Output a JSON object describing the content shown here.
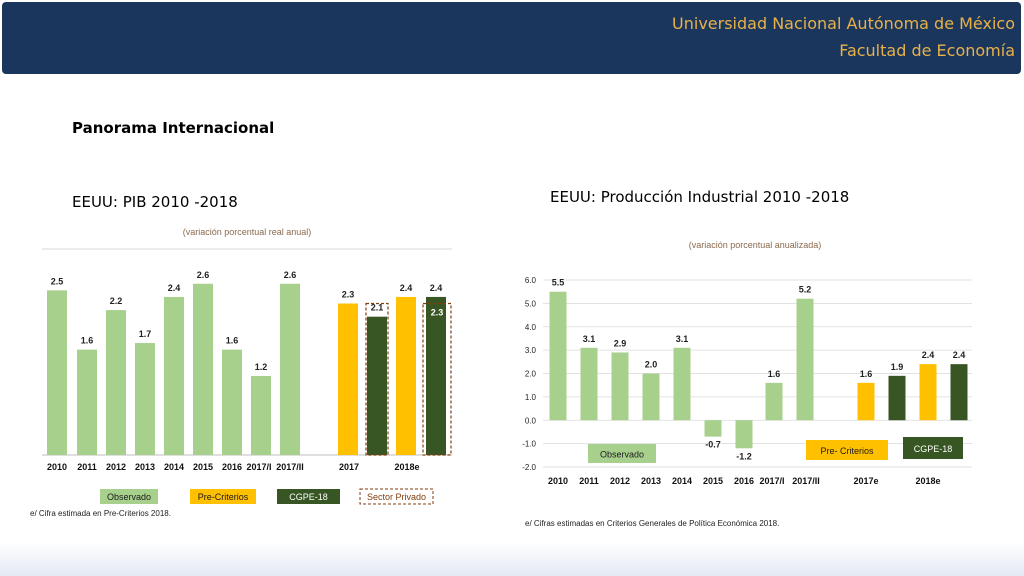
{
  "header": {
    "line1": "Universidad Nacional Autónoma de México",
    "line2": "Facultad de Economía"
  },
  "section_title": "Panorama Internacional",
  "colors": {
    "header_bg": "#1b365d",
    "header_text": "#e8b14a",
    "observado": "#a8d08d",
    "pre_criterios": "#ffc000",
    "cgpe": "#375623",
    "sector_privado_border": "#843c0c"
  },
  "chart_data": [
    {
      "type": "bar",
      "title": "EEUU: PIB 2010 -2018",
      "subtitle": "(variación porcentual real anual)",
      "categories": [
        "2010",
        "2011",
        "2012",
        "2013",
        "2014",
        "2015",
        "2016",
        "2017/I",
        "2017/II",
        "2017",
        "2018e"
      ],
      "series": [
        {
          "name": "Observado",
          "points": [
            {
              "x": "2010",
              "y": 2.5
            },
            {
              "x": "2011",
              "y": 1.6
            },
            {
              "x": "2012",
              "y": 2.2
            },
            {
              "x": "2013",
              "y": 1.7
            },
            {
              "x": "2014",
              "y": 2.4
            },
            {
              "x": "2015",
              "y": 2.6
            },
            {
              "x": "2016",
              "y": 1.6
            },
            {
              "x": "2017/I",
              "y": 1.2
            },
            {
              "x": "2017/II",
              "y": 2.6
            }
          ]
        },
        {
          "name": "Pre-Criterios",
          "points": [
            {
              "x": "2017",
              "y": 2.3
            },
            {
              "x": "2018e",
              "y": 2.4
            }
          ]
        },
        {
          "name": "CGPE-18",
          "points": [
            {
              "x": "2017",
              "y": 2.1
            },
            {
              "x": "2018e",
              "y": 2.4
            }
          ]
        },
        {
          "name": "Sector Privado",
          "points": [
            {
              "x": "2018e",
              "y": 2.3
            }
          ]
        }
      ],
      "ylim": [
        0,
        2.9
      ],
      "legend": [
        "Observado",
        "Pre-Criterios",
        "CGPE-18",
        "Sector Privado"
      ],
      "legend_position": "bottom",
      "footnote": "e/ Cifra estimada en Pre-Criterios 2018."
    },
    {
      "type": "bar",
      "title": "EEUU: Producción Industrial 2010 -2018",
      "subtitle": "(variación porcentual anualizada)",
      "categories": [
        "2010",
        "2011",
        "2012",
        "2013",
        "2014",
        "2015",
        "2016",
        "2017/I",
        "2017/II",
        "2017e",
        "2018e"
      ],
      "series": [
        {
          "name": "Observado",
          "points": [
            {
              "x": "2010",
              "y": 5.5
            },
            {
              "x": "2011",
              "y": 3.1
            },
            {
              "x": "2012",
              "y": 2.9
            },
            {
              "x": "2013",
              "y": 2.0
            },
            {
              "x": "2014",
              "y": 3.1
            },
            {
              "x": "2015",
              "y": -0.7
            },
            {
              "x": "2016",
              "y": -1.2
            },
            {
              "x": "2017/I",
              "y": 1.6
            },
            {
              "x": "2017/II",
              "y": 5.2
            }
          ]
        },
        {
          "name": "Pre- Criterios",
          "points": [
            {
              "x": "2017e",
              "y": 1.6
            },
            {
              "x": "2018e",
              "y": 2.4
            }
          ]
        },
        {
          "name": "CGPE-18",
          "points": [
            {
              "x": "2017e",
              "y": 1.9
            },
            {
              "x": "2018e",
              "y": 2.4
            }
          ]
        }
      ],
      "yticks": [
        "6.0",
        "5.0",
        "4.0",
        "3.0",
        "2.0",
        "1.0",
        "0.0",
        "-1.0",
        "-2.0"
      ],
      "ylim": [
        -2.0,
        6.0
      ],
      "grid": true,
      "legend": [
        "Observado",
        "Pre- Criterios",
        "CGPE-18"
      ],
      "legend_position": "inside-bottom",
      "footnote": "e/ Cifras estimadas en Criterios Generales de Política Económica 2018."
    }
  ]
}
